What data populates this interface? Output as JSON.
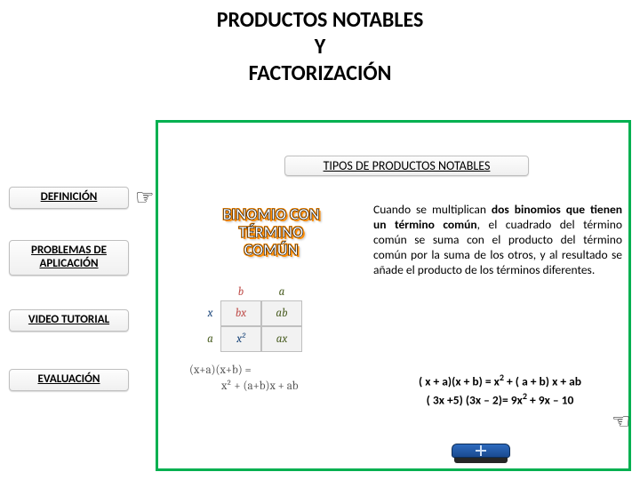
{
  "title": {
    "line1": "PRODUCTOS NOTABLES",
    "line2": "Y",
    "line3": "FACTORIZACIÓN"
  },
  "subheader": "TIPOS DE PRODUCTOS NOTABLES",
  "nav": {
    "definicion": "DEFINICIÓN",
    "problemas_l1": "PROBLEMAS DE",
    "problemas_l2": "APLICACIÓN",
    "video": "VIDEO TUTORIAL",
    "evaluacion": "EVALUACIÓN"
  },
  "topic": {
    "line1": "BINOMIO CON",
    "line2": "TÉRMINO",
    "line3": "COMÚN"
  },
  "punnet": {
    "col_b": "b",
    "col_a": "a",
    "row_x": "x",
    "row_a": "a",
    "cell_bx": "bx",
    "cell_ab": "ab",
    "cell_x2": "x²",
    "cell_ax": "ax"
  },
  "expansion": {
    "line1": "(x+a)(x+b) =",
    "line2": "x² + (a+b)x + ab"
  },
  "description": {
    "pre": "Cuando se multiplican ",
    "bold": "dos binomios que tienen un término común",
    "post": ", el cuadrado del término común se suma con el producto del término común por la suma de los otros, y al resultado se añade el producto de los términos diferentes."
  },
  "formulas": {
    "f1_pre": "( x + a)(x + b) = x",
    "f1_mid": " + ( a + b) x + ab",
    "f2_pre": "( 3x +5) (3x – 2)= 9x",
    "f2_mid": " + 9x – 10"
  },
  "colors": {
    "accent_green": "#00b050",
    "blue": "#1f497d",
    "darkred": "#c0504d",
    "olive": "#4f6228"
  }
}
